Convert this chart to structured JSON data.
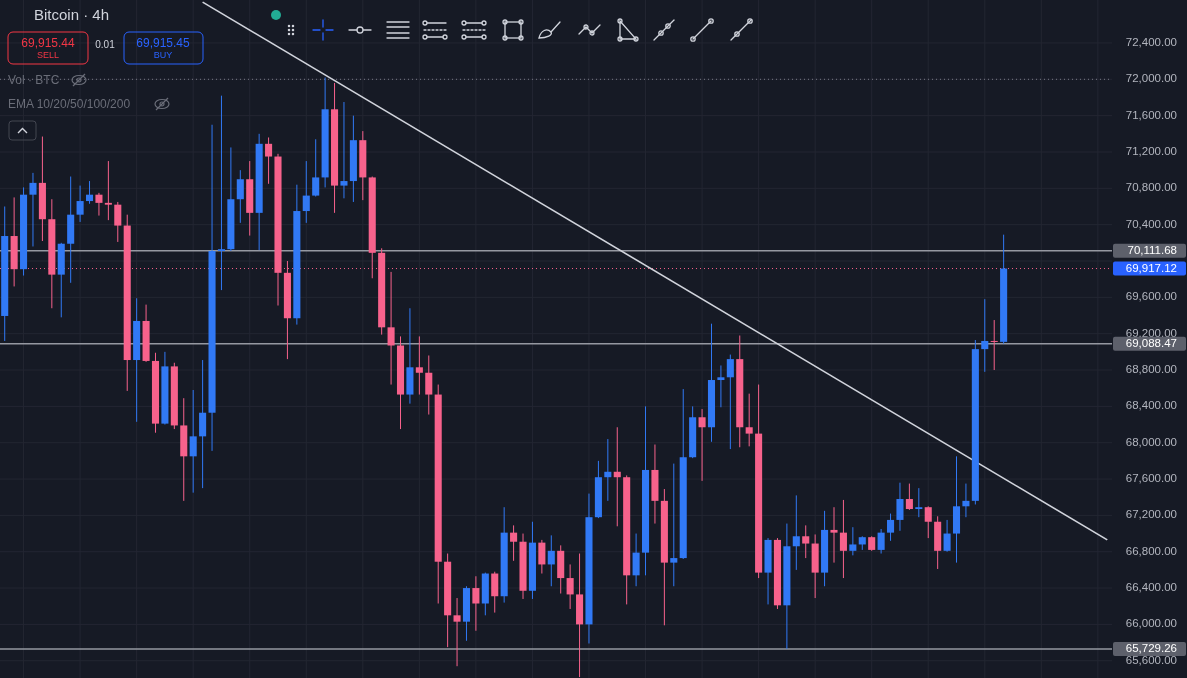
{
  "chart_data": {
    "type": "candlestick",
    "title": "Bitcoin · 4h",
    "annotations": [
      "69,915.44",
      "SELL",
      "0.01",
      "69,915.45",
      "BUY",
      "Vol · BTC",
      "EMA 10/20/50/100/200"
    ],
    "categories": [
      null,
      null,
      null,
      null,
      null,
      null,
      null,
      null,
      null,
      null,
      null,
      null,
      null,
      null,
      null,
      null,
      null,
      null,
      null,
      null,
      null,
      null,
      null,
      null,
      null,
      null,
      null,
      null,
      null,
      null,
      null,
      null,
      null,
      null,
      null,
      null,
      null,
      null,
      null,
      null,
      null,
      null,
      null,
      null,
      null,
      null,
      null,
      null,
      null,
      null,
      null,
      null,
      null,
      null,
      null,
      null,
      null,
      null,
      null,
      null,
      null,
      null,
      null,
      null,
      null,
      null,
      null,
      null,
      null,
      null,
      null,
      null,
      null,
      null,
      null,
      null,
      null,
      null,
      null,
      null,
      null,
      null,
      null,
      null,
      null,
      null,
      null,
      null,
      null,
      null,
      null,
      null,
      null,
      null,
      null,
      null,
      null,
      null,
      null,
      null,
      null,
      null,
      null,
      null,
      null,
      null,
      null,
      null,
      null,
      null,
      null,
      null,
      null,
      null,
      null,
      null,
      null,
      null
    ],
    "ohlc": [
      [
        69395,
        70600,
        69120,
        70275
      ],
      [
        70275,
        70700,
        69720,
        69910
      ],
      [
        69910,
        70810,
        69840,
        70730
      ],
      [
        70730,
        70970,
        70160,
        70860
      ],
      [
        70860,
        71370,
        70220,
        70460
      ],
      [
        70460,
        70680,
        69480,
        69850
      ],
      [
        69850,
        70200,
        69380,
        70190
      ],
      [
        70190,
        70930,
        69760,
        70510
      ],
      [
        70510,
        70830,
        70430,
        70660
      ],
      [
        70660,
        70880,
        70630,
        70730
      ],
      [
        70730,
        70750,
        70500,
        70640
      ],
      [
        70640,
        71100,
        70450,
        70620
      ],
      [
        70620,
        70650,
        70210,
        70390
      ],
      [
        70390,
        70510,
        68570,
        68910
      ],
      [
        68910,
        69590,
        68230,
        69340
      ],
      [
        69340,
        69520,
        68890,
        68900
      ],
      [
        68900,
        68990,
        68110,
        68210
      ],
      [
        68210,
        69000,
        68200,
        68840
      ],
      [
        68840,
        68880,
        68150,
        68190
      ],
      [
        68190,
        68490,
        67360,
        67850
      ],
      [
        67850,
        68580,
        67450,
        68070
      ],
      [
        68070,
        68910,
        67500,
        68330
      ],
      [
        68330,
        71500,
        67910,
        70110
      ],
      [
        70110,
        71820,
        69680,
        70130
      ],
      [
        70130,
        71250,
        70110,
        70680
      ],
      [
        70680,
        71000,
        70420,
        70900
      ],
      [
        70900,
        71100,
        70280,
        70530
      ],
      [
        70530,
        71400,
        70120,
        71290
      ],
      [
        71290,
        71360,
        70850,
        71150
      ],
      [
        71150,
        71180,
        69510,
        69870
      ],
      [
        69870,
        70000,
        68920,
        69370
      ],
      [
        69370,
        70840,
        69300,
        70550
      ],
      [
        70550,
        71100,
        70420,
        70720
      ],
      [
        70720,
        71340,
        70710,
        70920
      ],
      [
        70920,
        72020,
        70810,
        71670
      ],
      [
        71670,
        71960,
        70530,
        70830
      ],
      [
        70830,
        71750,
        70690,
        70880
      ],
      [
        70880,
        71600,
        70650,
        71330
      ],
      [
        71330,
        71430,
        70670,
        70920
      ],
      [
        70920,
        70930,
        69810,
        70090
      ],
      [
        70090,
        70140,
        69190,
        69270
      ],
      [
        69270,
        69880,
        68640,
        69070
      ],
      [
        69070,
        69170,
        68150,
        68530
      ],
      [
        68530,
        69480,
        68430,
        68830
      ],
      [
        68830,
        69170,
        68530,
        68770
      ],
      [
        68770,
        68960,
        68310,
        68530
      ],
      [
        68530,
        68640,
        66230,
        66690
      ],
      [
        66690,
        66780,
        65750,
        66100
      ],
      [
        66100,
        66290,
        65540,
        66030
      ],
      [
        66030,
        66420,
        65820,
        66400
      ],
      [
        66400,
        66530,
        65930,
        66230
      ],
      [
        66230,
        66570,
        66100,
        66560
      ],
      [
        66560,
        66580,
        66130,
        66310
      ],
      [
        66310,
        67290,
        66240,
        67010
      ],
      [
        67010,
        67090,
        66700,
        66910
      ],
      [
        66910,
        67000,
        66280,
        66370
      ],
      [
        66370,
        67130,
        66280,
        66900
      ],
      [
        66900,
        66930,
        66560,
        66660
      ],
      [
        66660,
        66980,
        66420,
        66810
      ],
      [
        66810,
        66870,
        66340,
        66510
      ],
      [
        66510,
        66660,
        66170,
        66330
      ],
      [
        66330,
        66780,
        65420,
        66000
      ],
      [
        66000,
        67440,
        65790,
        67180
      ],
      [
        67180,
        67800,
        67170,
        67620
      ],
      [
        67620,
        68040,
        67360,
        67680
      ],
      [
        67680,
        68170,
        67080,
        67620
      ],
      [
        67620,
        67640,
        66220,
        66540
      ],
      [
        66540,
        67000,
        66420,
        66790
      ],
      [
        66790,
        68400,
        66540,
        67700
      ],
      [
        67700,
        67980,
        67110,
        67360
      ],
      [
        67360,
        67490,
        65990,
        66680
      ],
      [
        66680,
        67770,
        66420,
        66730
      ],
      [
        66730,
        68590,
        66720,
        67840
      ],
      [
        67840,
        68400,
        67830,
        68280
      ],
      [
        68280,
        68370,
        67580,
        68170
      ],
      [
        68170,
        69310,
        68010,
        68690
      ],
      [
        68690,
        68850,
        68390,
        68720
      ],
      [
        68720,
        68970,
        67930,
        68920
      ],
      [
        68920,
        69180,
        67950,
        68170
      ],
      [
        68170,
        68540,
        67960,
        68100
      ],
      [
        68100,
        68640,
        66510,
        66570
      ],
      [
        66570,
        66950,
        66220,
        66930
      ],
      [
        66930,
        66950,
        66170,
        66210
      ],
      [
        66210,
        67110,
        65730,
        66860
      ],
      [
        66860,
        67420,
        66600,
        66970
      ],
      [
        66970,
        67090,
        66730,
        66890
      ],
      [
        66890,
        66990,
        66290,
        66570
      ],
      [
        66570,
        67250,
        66420,
        67040
      ],
      [
        67040,
        67290,
        66680,
        67010
      ],
      [
        67010,
        67370,
        66510,
        66810
      ],
      [
        66810,
        67070,
        66760,
        66880
      ],
      [
        66880,
        66970,
        66820,
        66960
      ],
      [
        66960,
        66970,
        66810,
        66820
      ],
      [
        66820,
        67050,
        66780,
        67010
      ],
      [
        67010,
        67220,
        66920,
        67150
      ],
      [
        67150,
        67560,
        67030,
        67380
      ],
      [
        67380,
        67550,
        67260,
        67270
      ],
      [
        67270,
        67500,
        67180,
        67290
      ],
      [
        67290,
        67300,
        66950,
        67130
      ],
      [
        67130,
        67190,
        66610,
        66810
      ],
      [
        66810,
        67150,
        66800,
        67000
      ],
      [
        67000,
        67850,
        66680,
        67300
      ],
      [
        67300,
        67550,
        67180,
        67360
      ],
      [
        67360,
        69130,
        67320,
        69030
      ],
      [
        69030,
        69580,
        68780,
        69120
      ],
      [
        69120,
        69350,
        68800,
        69110
      ],
      [
        69110,
        70290,
        69090,
        69917.12
      ],
      null,
      null,
      null,
      null,
      null,
      null,
      null,
      null,
      null,
      null,
      null
    ],
    "colors": [
      "#3179f5",
      "#f7628c",
      "#3179f5",
      "#3179f5",
      "#f7628c",
      "#f7628c",
      "#3179f5",
      "#3179f5",
      "#3179f5",
      "#3179f5",
      "#f7628c",
      "#f7628c",
      "#f7628c",
      "#f7628c",
      "#3179f5",
      "#f7628c",
      "#f7628c",
      "#3179f5",
      "#f7628c",
      "#f7628c",
      "#3179f5",
      "#3179f5",
      "#3179f5",
      "#3179f5",
      "#3179f5",
      "#3179f5",
      "#f7628c",
      "#3179f5",
      "#f7628c",
      "#f7628c",
      "#f7628c",
      "#3179f5",
      "#3179f5",
      "#3179f5",
      "#3179f5",
      "#f7628c",
      "#3179f5",
      "#3179f5",
      "#f7628c",
      "#f7628c",
      "#f7628c",
      "#f7628c",
      "#f7628c",
      "#3179f5",
      "#f7628c",
      "#f7628c",
      "#f7628c",
      "#f7628c",
      "#f7628c",
      "#3179f5",
      "#f7628c",
      "#3179f5",
      "#f7628c",
      "#3179f5",
      "#f7628c",
      "#f7628c",
      "#3179f5",
      "#f7628c",
      "#3179f5",
      "#f7628c",
      "#f7628c",
      "#f7628c",
      "#3179f5",
      "#3179f5",
      "#3179f5",
      "#f7628c",
      "#f7628c",
      "#3179f5",
      "#3179f5",
      "#f7628c",
      "#f7628c",
      "#3179f5",
      "#3179f5",
      "#3179f5",
      "#f7628c",
      "#3179f5",
      "#3179f5",
      "#3179f5",
      "#f7628c",
      "#f7628c",
      "#f7628c",
      "#3179f5",
      "#f7628c",
      "#3179f5",
      "#3179f5",
      "#f7628c",
      "#f7628c",
      "#3179f5",
      "#f7628c",
      "#f7628c",
      "#3179f5",
      "#3179f5",
      "#f7628c",
      "#3179f5",
      "#3179f5",
      "#3179f5",
      "#f7628c",
      "#3179f5",
      "#f7628c",
      "#f7628c",
      "#3179f5",
      "#3179f5",
      "#3179f5",
      "#3179f5",
      "#3179f5",
      "#f7628c",
      "#3179f5",
      null,
      null,
      null,
      null,
      null,
      null,
      null,
      null,
      null,
      null,
      null
    ],
    "series": [
      {
        "type": "line",
        "values": [
          null,
          null,
          null,
          null,
          null,
          null,
          null,
          null,
          null,
          null,
          null,
          null,
          null,
          null,
          null,
          null,
          null,
          null,
          null,
          null,
          null,
          72850,
          null,
          null,
          null,
          null,
          null,
          null,
          null,
          null,
          null,
          null,
          null,
          null,
          null,
          null,
          null,
          null,
          null,
          null,
          null,
          null,
          null,
          null,
          null,
          null,
          null,
          null,
          null,
          null,
          null,
          null,
          null,
          null,
          null,
          null,
          null,
          null,
          null,
          null,
          null,
          null,
          null,
          null,
          null,
          null,
          null,
          null,
          null,
          null,
          null,
          null,
          null,
          null,
          null,
          null,
          null,
          null,
          null,
          null,
          null,
          null,
          null,
          null,
          null,
          null,
          null,
          null,
          null,
          null,
          null,
          null,
          null,
          null,
          null,
          null,
          null,
          null,
          null,
          null,
          null,
          null,
          null,
          null,
          null,
          null,
          null,
          null,
          null,
          null,
          null,
          null,
          null,
          null,
          null,
          null,
          null,
          66930
        ],
        "color": "#d1d4dc"
      }
    ],
    "ref_lines": [
      {
        "axis": "y",
        "value": 72000,
        "color": "#787b86",
        "line_style": "dotted"
      },
      {
        "axis": "y",
        "value": 70111.68,
        "label": "70,111.68",
        "color": "#9598a1",
        "line_style": "solid"
      },
      {
        "axis": "y",
        "value": 69917.12,
        "label": "69,917.12",
        "color": "#f7628c",
        "line_style": "dotted"
      },
      {
        "axis": "y",
        "value": 69088.47,
        "label": "69,088.47",
        "color": "#9598a1",
        "line_style": "solid"
      },
      {
        "axis": "y",
        "value": 65729.26,
        "label": "65,729.26",
        "color": "#9598a1",
        "line_style": "solid"
      }
    ],
    "ylim": [
      65410,
      72873
    ],
    "yticks": [
      {
        "value": 65600,
        "label": "65,600.00"
      },
      {
        "value": 66000,
        "label": "66,000.00"
      },
      {
        "value": 66400,
        "label": "66,400.00"
      },
      {
        "value": 66800,
        "label": "66,800.00"
      },
      {
        "value": 67200,
        "label": "67,200.00"
      },
      {
        "value": 67600,
        "label": "67,600.00"
      },
      {
        "value": 68000,
        "label": "68,000.00"
      },
      {
        "value": 68400,
        "label": "68,400.00"
      },
      {
        "value": 68800,
        "label": "68,800.00"
      },
      {
        "value": 69200,
        "label": "69,200.00"
      },
      {
        "value": 69600,
        "label": "69,600.00"
      },
      {
        "value": 70000,
        "label": null
      },
      {
        "value": 70400,
        "label": "70,400.00"
      },
      {
        "value": 70800,
        "label": "70,800.00"
      },
      {
        "value": 71200,
        "label": "71,200.00"
      },
      {
        "value": 71600,
        "label": "71,600.00"
      },
      {
        "value": 72000,
        "label": "72,000.00"
      },
      {
        "value": 72400,
        "label": "72,400.00"
      }
    ],
    "grid": true,
    "tick_labels": "y"
  }
}
